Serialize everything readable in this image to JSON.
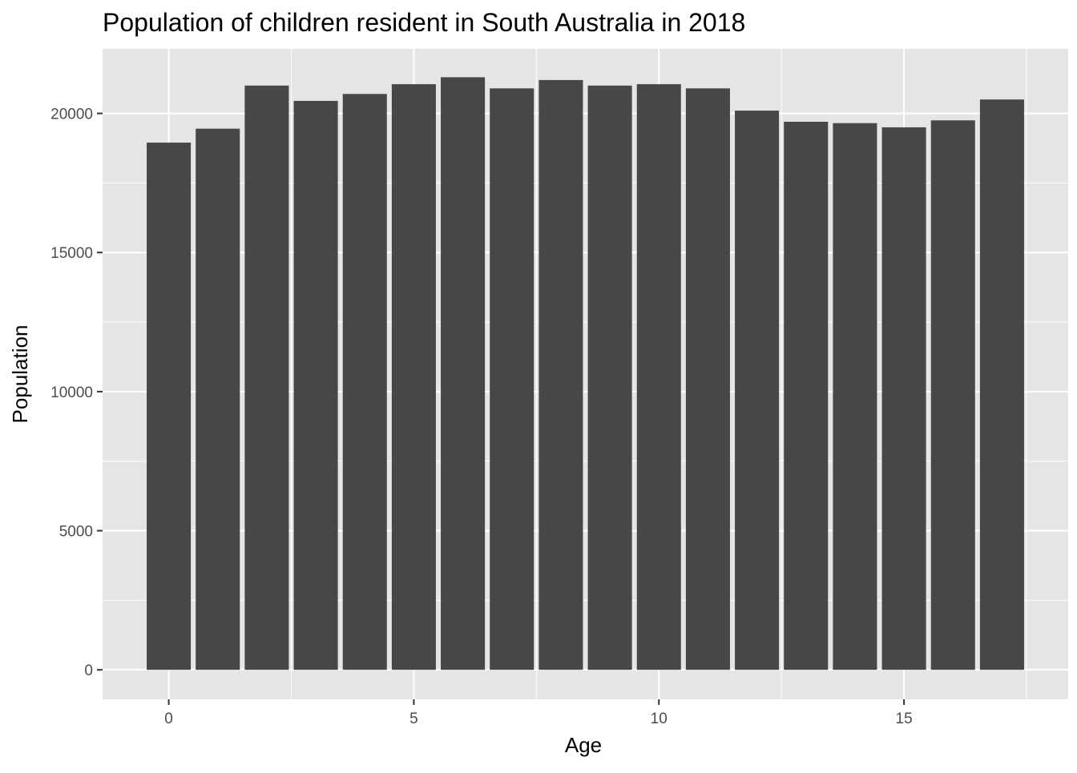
{
  "chart_data": {
    "type": "bar",
    "title": "Population of children resident in South Australia in 2018",
    "xlabel": "Age",
    "ylabel": "Population",
    "x": [
      0,
      1,
      2,
      3,
      4,
      5,
      6,
      7,
      8,
      9,
      10,
      11,
      12,
      13,
      14,
      15,
      16,
      17
    ],
    "values": [
      18950,
      19450,
      21000,
      20450,
      20700,
      21050,
      21300,
      20900,
      21200,
      21000,
      21050,
      20900,
      20100,
      19700,
      19650,
      19500,
      19750,
      20500
    ],
    "xlim": [
      -1.35,
      18.35
    ],
    "ylim": [
      -1060,
      22320
    ],
    "x_ticks": [
      0,
      5,
      10,
      15
    ],
    "x_tick_labels": [
      "0",
      "5",
      "10",
      "15"
    ],
    "y_ticks": [
      0,
      5000,
      10000,
      15000,
      20000
    ],
    "y_tick_labels": [
      "0",
      "5000",
      "10000",
      "15000",
      "20000"
    ],
    "grid": true,
    "legend": "none",
    "colors": {
      "bar": "#474747",
      "panel_background": "#e5e5e5",
      "grid": "#ffffff",
      "tick_text": "#4d4d4d"
    }
  }
}
